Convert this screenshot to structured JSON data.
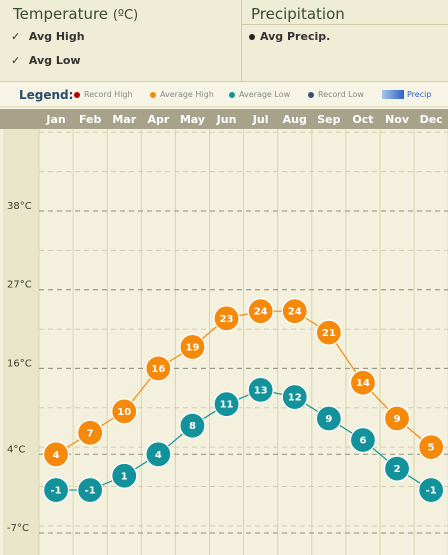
{
  "controls": {
    "temperature": {
      "title": "Temperature",
      "unit": "(ºC)",
      "avg_high_label": "Avg High",
      "avg_low_label": "Avg Low",
      "check_mark": "✓"
    },
    "precipitation": {
      "title": "Precipitation",
      "avg_precip_label": "Avg Precip."
    }
  },
  "legend": {
    "title": "Legend:",
    "items": [
      {
        "label": "Record High",
        "color": "#b30000"
      },
      {
        "label": "Average High",
        "color": "#f5890c"
      },
      {
        "label": "Average Low",
        "color": "#14929b"
      },
      {
        "label": "Record Low",
        "color": "#3d4d7e"
      }
    ],
    "precip_label": "Precip"
  },
  "chart_data": {
    "type": "line",
    "categories": [
      "Jan",
      "Feb",
      "Mar",
      "Apr",
      "May",
      "Jun",
      "Jul",
      "Aug",
      "Sep",
      "Oct",
      "Nov",
      "Dec"
    ],
    "series": [
      {
        "name": "Average High",
        "color": "#f5890c",
        "values": [
          4,
          7,
          10,
          16,
          19,
          23,
          24,
          24,
          21,
          14,
          9,
          5
        ]
      },
      {
        "name": "Average Low",
        "color": "#14929b",
        "values": [
          -1,
          -1,
          1,
          4,
          8,
          11,
          13,
          12,
          9,
          6,
          2,
          -1
        ]
      }
    ],
    "y_ticks": [
      {
        "value": 38,
        "label": "38°C"
      },
      {
        "value": 27,
        "label": "27°C"
      },
      {
        "value": 16,
        "label": "16°C"
      },
      {
        "value": 4,
        "label": "4°C"
      },
      {
        "value": -7,
        "label": "-7°C"
      }
    ],
    "ylim": [
      -8,
      49
    ],
    "grid": true
  }
}
